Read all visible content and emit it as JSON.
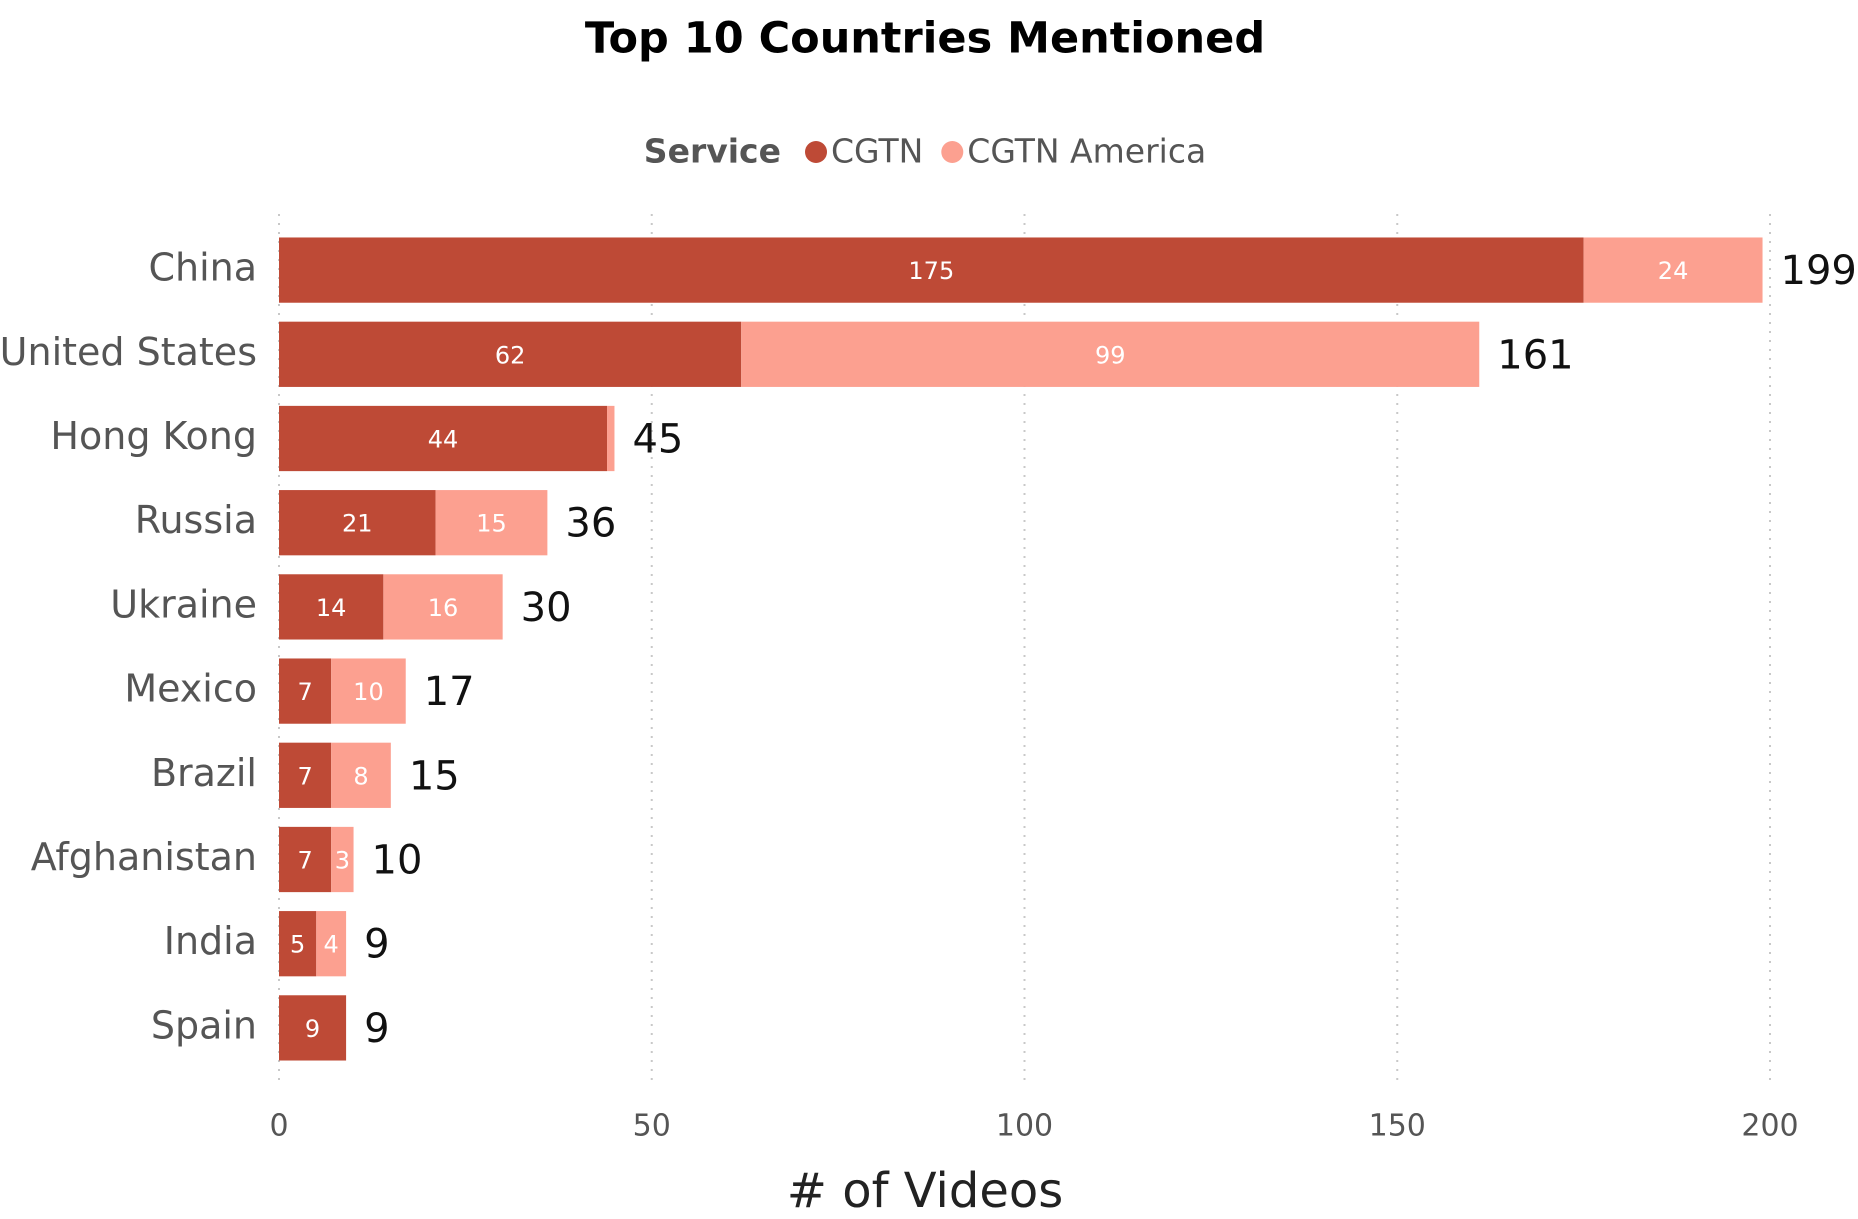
{
  "chart_data": {
    "type": "stacked_bar_horizontal",
    "title": "Top 10 Countries Mentioned",
    "legend_title": "Service",
    "legend_position": "top",
    "x_label": "# of Videos",
    "categories": [
      "China",
      "United States",
      "Hong Kong",
      "Russia",
      "Ukraine",
      "Mexico",
      "Brazil",
      "Afghanistan",
      "India",
      "Spain"
    ],
    "series": [
      {
        "name": "CGTN",
        "color": "#be4a36",
        "values": [
          175,
          62,
          44,
          21,
          14,
          7,
          7,
          7,
          5,
          9
        ]
      },
      {
        "name": "CGTN America",
        "color": "#fca090",
        "values": [
          24,
          99,
          1,
          15,
          16,
          10,
          8,
          3,
          4,
          0
        ]
      }
    ],
    "totals": [
      199,
      161,
      45,
      36,
      30,
      17,
      15,
      10,
      9,
      9
    ],
    "xlim": [
      0,
      200
    ],
    "xticks": [
      0,
      50,
      100,
      150,
      200
    ],
    "grid": true
  }
}
